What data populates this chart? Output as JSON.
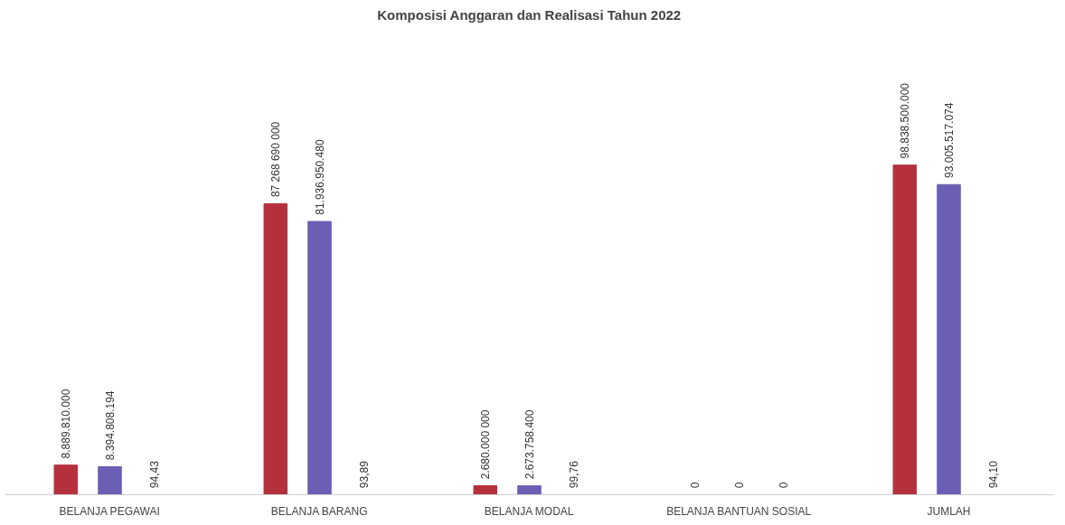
{
  "chart_data": {
    "type": "bar",
    "title": "Komposisi Anggaran dan Realisasi Tahun 2022",
    "categories": [
      "BELANJA PEGAWAI",
      "BELANJA BARANG",
      "BELANJA MODAL",
      "BELANJA BANTUAN SOSIAL",
      "JUMLAH"
    ],
    "series": [
      {
        "color": "#b5303d",
        "values": [
          8889810000,
          87268690000,
          2680000000,
          0,
          98838500000
        ],
        "value_labels": [
          "8.889.810.000",
          "87 268 690 000",
          "2.680.000 000",
          "0",
          "98.838.500.000"
        ]
      },
      {
        "color": "#6a5fb5",
        "values": [
          8394808194,
          81936950480,
          2673758400,
          0,
          93005517074
        ],
        "value_labels": [
          "8.394.808.194",
          "81.936.950.480",
          "2.673.758.400",
          "0",
          "93.005.517.074"
        ]
      },
      {
        "color": "#9a9a9a",
        "values": [
          94.43,
          93.89,
          99.76,
          0,
          94.1
        ],
        "value_labels": [
          "94,43",
          "93,89",
          "99,76",
          "0",
          "94,10"
        ]
      }
    ],
    "grid": false
  }
}
